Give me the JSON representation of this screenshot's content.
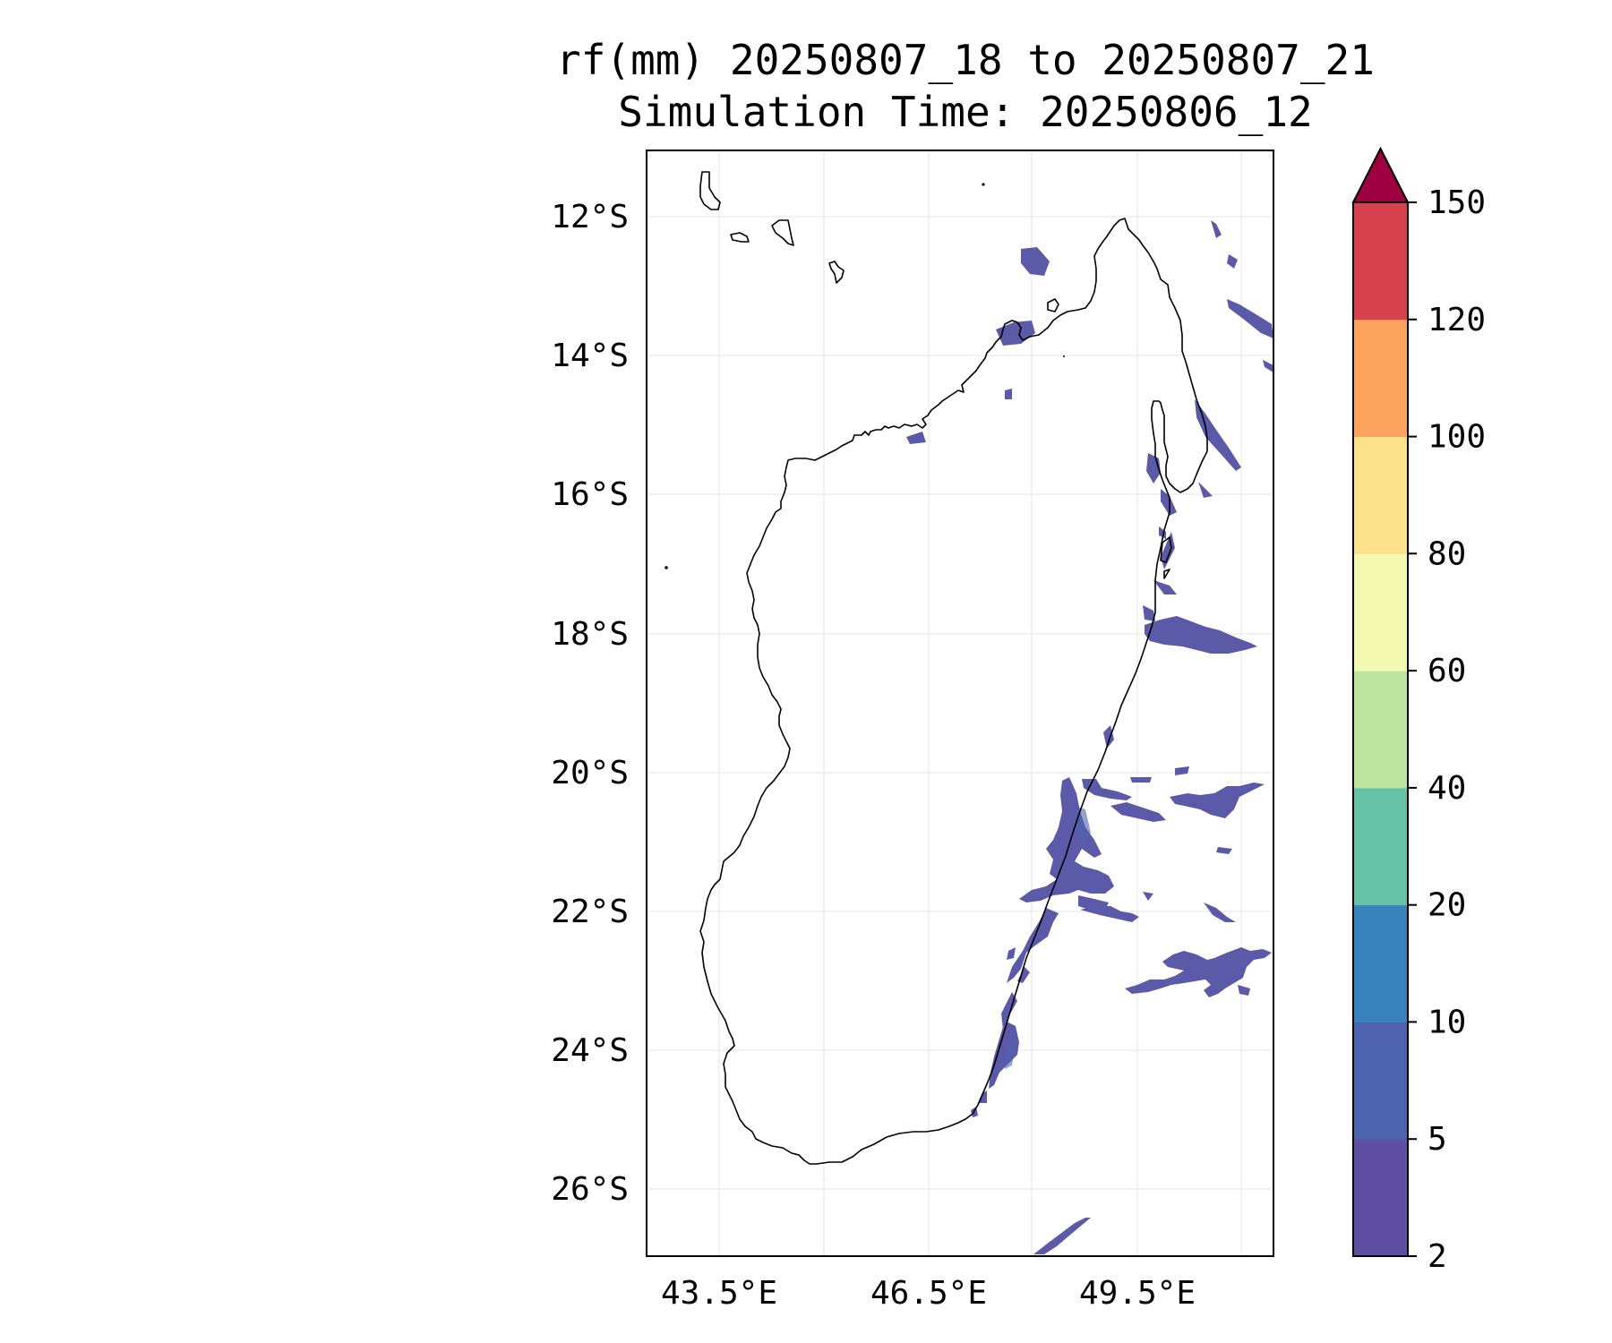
{
  "title": {
    "line1": "rf(mm) 20250807_18 to 20250807_21",
    "line2": "Simulation Time: 20250806_12"
  },
  "map": {
    "lon_ticks": [
      "43.5°E",
      "46.5°E",
      "49.5°E"
    ],
    "lat_ticks": [
      "12°S",
      "14°S",
      "16°S",
      "18°S",
      "20°S",
      "22°S",
      "24°S",
      "26°S"
    ],
    "gridlines": true,
    "coastline_color": "#000000"
  },
  "colorbar": {
    "ticks": [
      "2",
      "5",
      "10",
      "20",
      "40",
      "60",
      "80",
      "100",
      "120",
      "150"
    ],
    "colors": [
      "#5e4fa2",
      "#4e63ad",
      "#3a82bb",
      "#66c2a5",
      "#bde4a0",
      "#f3f9ae",
      "#fce18b",
      "#fca35d",
      "#d7414e",
      "#9e0142"
    ],
    "extend": "max"
  },
  "rain_color": "#5b5aa8"
}
